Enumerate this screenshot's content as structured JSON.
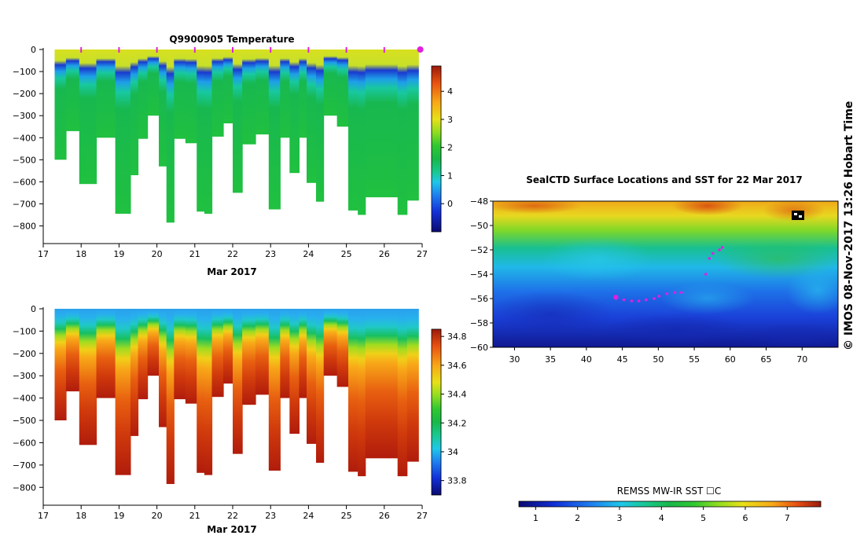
{
  "chart_data": [
    {
      "type": "heatmap",
      "name": "temperature-section",
      "title": "Q9900905  Temperature",
      "xlabel": "Mar 2017",
      "ylabel": "",
      "xlim": [
        17,
        27
      ],
      "ylim": [
        -880,
        0
      ],
      "x_ticks": [
        17,
        18,
        19,
        20,
        21,
        22,
        23,
        24,
        25,
        26,
        27
      ],
      "y_ticks": [
        0,
        -100,
        -200,
        -300,
        -400,
        -500,
        -600,
        -700,
        -800
      ],
      "colorbar": {
        "min": -1,
        "max": 4.9,
        "ticks": [
          0,
          1,
          2,
          3,
          4
        ]
      },
      "profile_markers_x": [
        18,
        19,
        20,
        21,
        22,
        23,
        24,
        25,
        26,
        26.95
      ],
      "profiles": [
        {
          "x0": 17.3,
          "x1": 17.6,
          "depth": 500
        },
        {
          "x0": 17.6,
          "x1": 17.95,
          "depth": 370
        },
        {
          "x0": 17.95,
          "x1": 18.4,
          "depth": 610
        },
        {
          "x0": 18.4,
          "x1": 18.9,
          "depth": 400
        },
        {
          "x0": 18.9,
          "x1": 19.3,
          "depth": 745
        },
        {
          "x0": 19.3,
          "x1": 19.5,
          "depth": 570
        },
        {
          "x0": 19.5,
          "x1": 19.75,
          "depth": 405
        },
        {
          "x0": 19.75,
          "x1": 20.05,
          "depth": 300
        },
        {
          "x0": 20.05,
          "x1": 20.25,
          "depth": 530
        },
        {
          "x0": 20.25,
          "x1": 20.45,
          "depth": 785
        },
        {
          "x0": 20.45,
          "x1": 20.75,
          "depth": 405
        },
        {
          "x0": 20.75,
          "x1": 21.05,
          "depth": 425
        },
        {
          "x0": 21.05,
          "x1": 21.25,
          "depth": 735
        },
        {
          "x0": 21.25,
          "x1": 21.45,
          "depth": 745
        },
        {
          "x0": 21.45,
          "x1": 21.75,
          "depth": 395
        },
        {
          "x0": 21.75,
          "x1": 22.0,
          "depth": 335
        },
        {
          "x0": 22.0,
          "x1": 22.25,
          "depth": 650
        },
        {
          "x0": 22.25,
          "x1": 22.6,
          "depth": 430
        },
        {
          "x0": 22.6,
          "x1": 22.95,
          "depth": 385
        },
        {
          "x0": 22.95,
          "x1": 23.25,
          "depth": 725
        },
        {
          "x0": 23.25,
          "x1": 23.5,
          "depth": 400
        },
        {
          "x0": 23.5,
          "x1": 23.75,
          "depth": 560
        },
        {
          "x0": 23.75,
          "x1": 23.95,
          "depth": 400
        },
        {
          "x0": 23.95,
          "x1": 24.2,
          "depth": 605
        },
        {
          "x0": 24.2,
          "x1": 24.4,
          "depth": 690
        },
        {
          "x0": 24.4,
          "x1": 24.75,
          "depth": 300
        },
        {
          "x0": 24.75,
          "x1": 25.05,
          "depth": 350
        },
        {
          "x0": 25.05,
          "x1": 25.3,
          "depth": 730
        },
        {
          "x0": 25.3,
          "x1": 25.5,
          "depth": 750
        },
        {
          "x0": 25.5,
          "x1": 26.1,
          "depth": 670
        },
        {
          "x0": 26.1,
          "x1": 26.35,
          "depth": 670
        },
        {
          "x0": 26.35,
          "x1": 26.6,
          "depth": 750
        },
        {
          "x0": 26.6,
          "x1": 26.9,
          "depth": 685
        }
      ]
    },
    {
      "type": "heatmap",
      "name": "salinity-section",
      "title": "",
      "xlabel": "Mar 2017",
      "ylabel": "",
      "xlim": [
        17,
        27
      ],
      "ylim": [
        -880,
        0
      ],
      "x_ticks": [
        17,
        18,
        19,
        20,
        21,
        22,
        23,
        24,
        25,
        26,
        27
      ],
      "y_ticks": [
        0,
        -100,
        -200,
        -300,
        -400,
        -500,
        -600,
        -700,
        -800
      ],
      "colorbar": {
        "min": 33.7,
        "max": 34.85,
        "ticks": [
          33.8,
          34,
          34.2,
          34.4,
          34.6,
          34.8
        ]
      }
    },
    {
      "type": "heatmap",
      "name": "sst-map",
      "title": "SealCTD Surface Locations and SST for 22 Mar 2017",
      "xlabel": "",
      "ylabel": "",
      "xlim": [
        27,
        75
      ],
      "ylim": [
        -60,
        -48
      ],
      "x_ticks": [
        30,
        35,
        40,
        45,
        50,
        55,
        60,
        65,
        70
      ],
      "y_ticks": [
        -48,
        -50,
        -52,
        -54,
        -56,
        -58,
        -60
      ],
      "colorbar": {
        "label": "REMSS MW-IR SST ☐C",
        "min": 0.6,
        "max": 7.8,
        "ticks": [
          1,
          2,
          3,
          4,
          5,
          6,
          7
        ]
      },
      "track": [
        {
          "lon": 44.1,
          "lat": -55.9
        },
        {
          "lon": 45.2,
          "lat": -56.1
        },
        {
          "lon": 46.3,
          "lat": -56.2
        },
        {
          "lon": 47.3,
          "lat": -56.2
        },
        {
          "lon": 48.3,
          "lat": -56.1
        },
        {
          "lon": 49.4,
          "lat": -56.0
        },
        {
          "lon": 50.1,
          "lat": -55.8
        },
        {
          "lon": 51.2,
          "lat": -55.6
        },
        {
          "lon": 52.3,
          "lat": -55.5
        },
        {
          "lon": 53.2,
          "lat": -55.5
        },
        {
          "lon": 56.6,
          "lat": -54.0
        },
        {
          "lon": 57.1,
          "lat": -52.7
        },
        {
          "lon": 57.6,
          "lat": -52.3
        },
        {
          "lon": 58.5,
          "lat": -52.0
        },
        {
          "lon": 58.9,
          "lat": -51.8
        }
      ]
    }
  ],
  "credit": "©  IMOS 08-Nov-2017 13:26 Hobart Time"
}
